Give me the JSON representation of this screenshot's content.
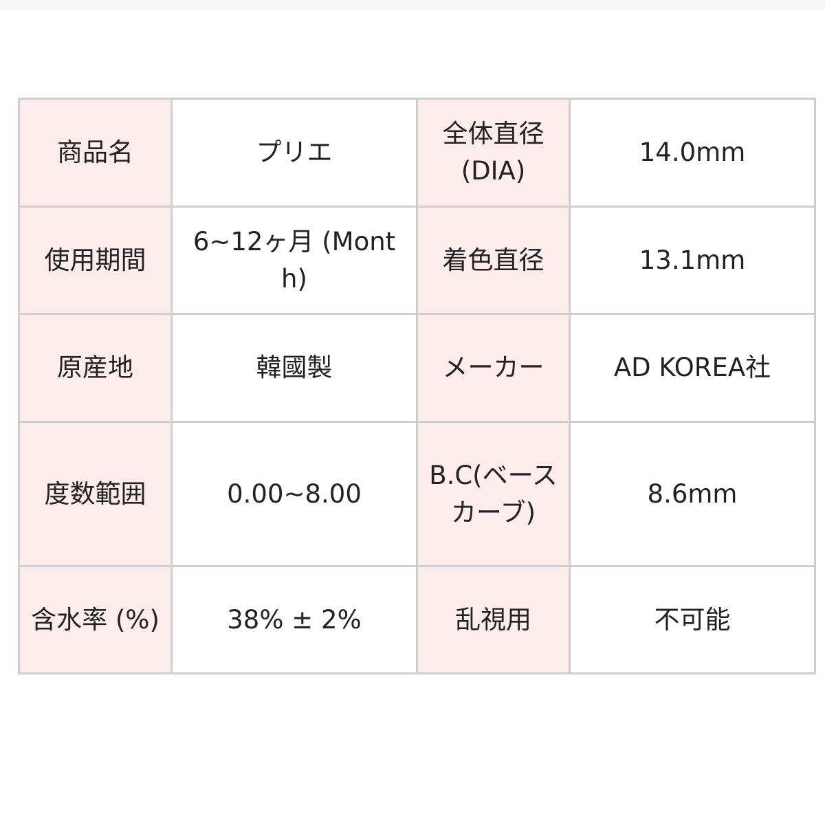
{
  "rows": [
    {
      "label1": "商品名",
      "value1": "プリエ",
      "label2": "全体直径 (DIA)",
      "value2": "14.0mm"
    },
    {
      "label1": "使用期間",
      "value1": "6~12ヶ月 (Month)",
      "label2": "着色直径",
      "value2": "13.1mm"
    },
    {
      "label1": "原産地",
      "value1": "韓國製",
      "label2": "メーカー",
      "value2": "AD KOREA社"
    },
    {
      "label1": "度数範囲",
      "value1": "0.00~8.00",
      "label2": "B.C(ベースカーブ)",
      "value2": "8.6mm"
    },
    {
      "label1": "含水率 (%)",
      "value1": "38% ± 2%",
      "label2": "乱視用",
      "value2": "不可能"
    }
  ],
  "colors": {
    "header_bg": "#fcecec",
    "border": "#cfcfcf"
  }
}
